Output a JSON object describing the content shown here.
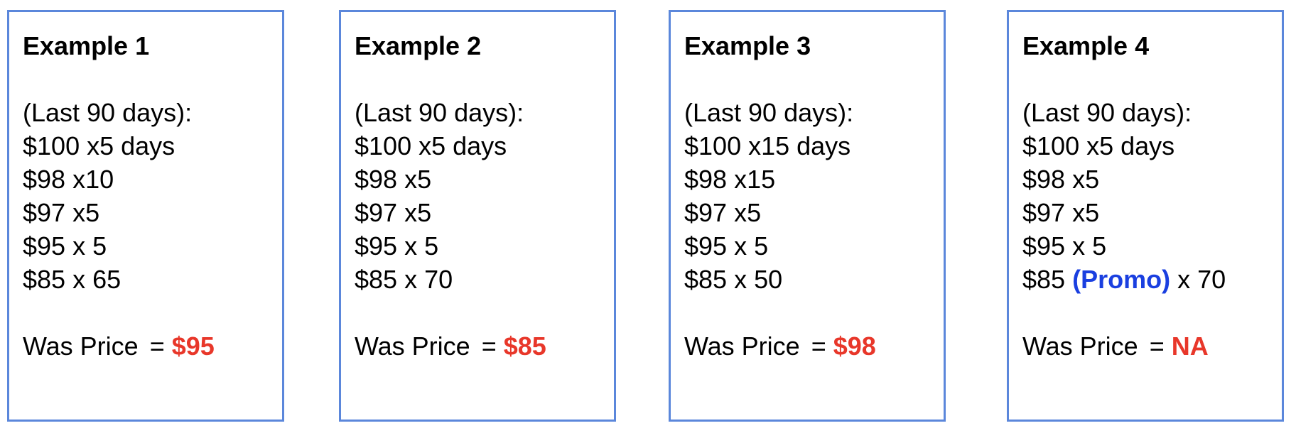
{
  "colors": {
    "border": "#5b87db",
    "result": "#e8372a",
    "promo": "#1a3fe0",
    "text": "#000000"
  },
  "examples": [
    {
      "title": "Example 1",
      "period": "(Last 90 days):",
      "lines": [
        {
          "text": "$100 x5 days"
        },
        {
          "text": "$98 x10"
        },
        {
          "text": "$97 x5"
        },
        {
          "text": "$95 x 5"
        },
        {
          "text": "$85 x 65"
        }
      ],
      "was_label": "Was Price",
      "was_eq": "=",
      "was_value": "$95"
    },
    {
      "title": "Example 2",
      "period": "(Last 90 days):",
      "lines": [
        {
          "text": "$100 x5 days"
        },
        {
          "text": "$98 x5"
        },
        {
          "text": "$97 x5"
        },
        {
          "text": "$95 x 5"
        },
        {
          "text": "$85 x 70"
        }
      ],
      "was_label": "Was Price",
      "was_eq": "=",
      "was_value": "$85"
    },
    {
      "title": "Example 3",
      "period": "(Last 90 days):",
      "lines": [
        {
          "text": "$100 x15 days"
        },
        {
          "text": "$98 x15"
        },
        {
          "text": "$97 x5"
        },
        {
          "text": "$95 x 5"
        },
        {
          "text": "$85 x 50"
        }
      ],
      "was_label": "Was Price",
      "was_eq": "=",
      "was_value": "$98"
    },
    {
      "title": "Example 4",
      "period": "(Last 90 days):",
      "lines": [
        {
          "text": "$100 x5 days"
        },
        {
          "text": "$98 x5"
        },
        {
          "text": "$97 x5"
        },
        {
          "text": "$95 x 5"
        },
        {
          "pre": "$85",
          "promo": "(Promo)",
          "post": "x 70"
        }
      ],
      "was_label": "Was Price",
      "was_eq": "=",
      "was_value": "NA"
    }
  ]
}
